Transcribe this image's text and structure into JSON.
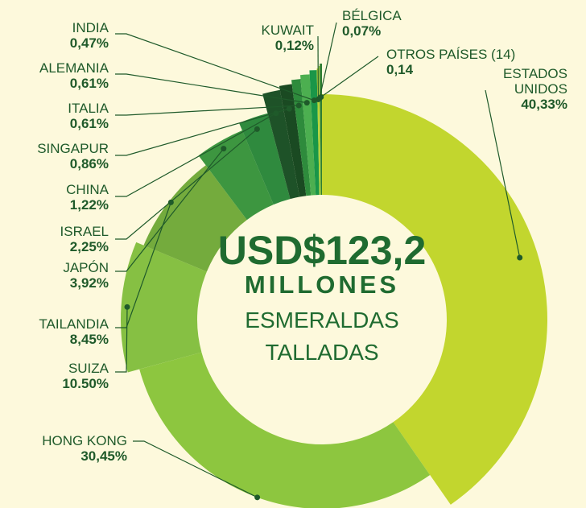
{
  "chart_data": {
    "type": "pie",
    "center_text": [
      "USD$123,2",
      "MILLONES",
      "ESMERALDAS",
      "TALLADAS"
    ],
    "categories": [
      "ESTADOS UNIDOS",
      "HONG KONG",
      "SUIZA",
      "TAILANDIA",
      "JAPÓN",
      "ISRAEL",
      "CHINA",
      "SINGAPUR",
      "ITALIA",
      "ALEMANIA",
      "INDIA",
      "KUWAIT",
      "BÉLGICA",
      "OTROS PAÍSES (14)"
    ],
    "values": [
      40.33,
      30.45,
      10.5,
      8.45,
      3.92,
      2.25,
      1.22,
      0.86,
      0.61,
      0.61,
      0.47,
      0.12,
      0.07,
      0.14
    ],
    "value_labels": [
      "40,33%",
      "30,45%",
      "10.50%",
      "8,45%",
      "3,92%",
      "2,25%",
      "1,22%",
      "0,86%",
      "0,61%",
      "0,61%",
      "0,47%",
      "0,12%",
      "0,07%",
      "0,14"
    ],
    "colors": [
      "#c2d62e",
      "#8dc63f",
      "#86c043",
      "#74ab3d",
      "#3d9640",
      "#2f8a3e",
      "#1e5228",
      "#1a4a22",
      "#2e8b3c",
      "#4caf50",
      "#1a9648",
      "#b9d532",
      "#8dc63f",
      "#2e7d32"
    ]
  }
}
